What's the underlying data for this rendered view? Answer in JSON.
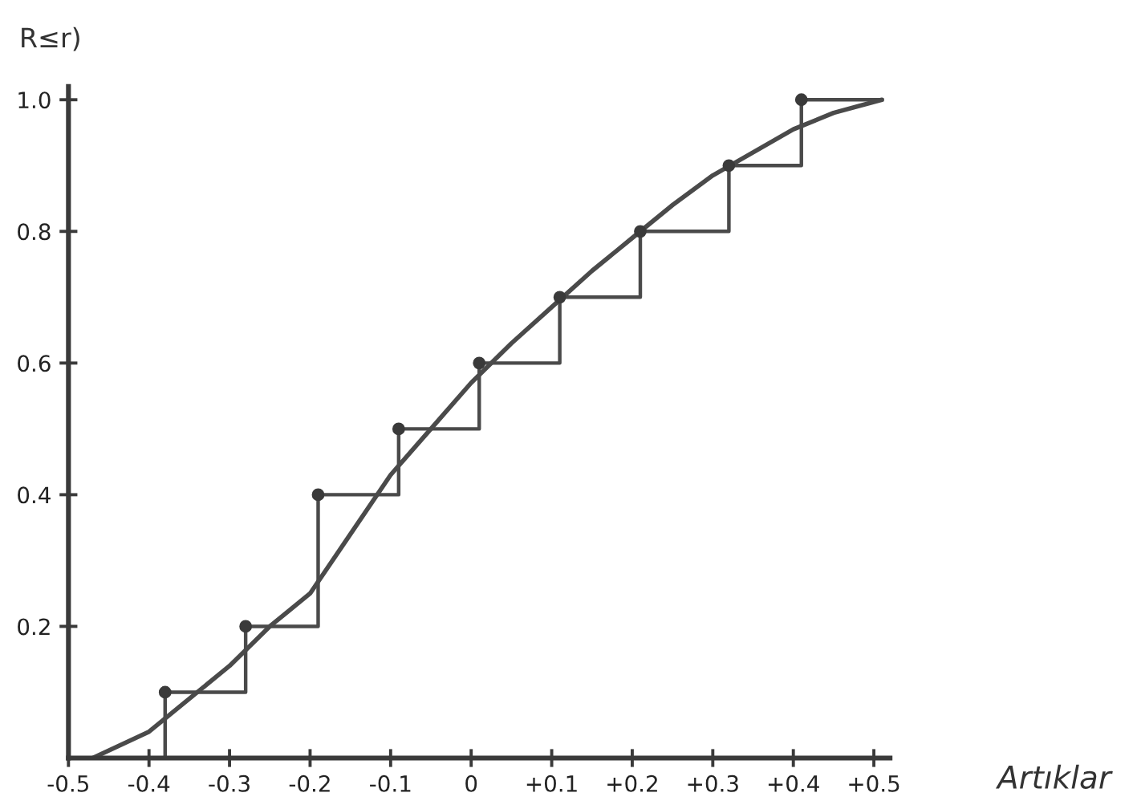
{
  "chart_data": {
    "type": "line",
    "xlabel": "Artıklar",
    "ylabel": "R≤r)",
    "xlim": [
      -0.5,
      0.52
    ],
    "ylim": [
      0,
      1.02
    ],
    "xticks": [
      -0.5,
      -0.4,
      -0.3,
      -0.2,
      -0.1,
      0,
      {
        "value": 0.1,
        "label": "+0.1"
      },
      {
        "value": 0.2,
        "label": "+0.2"
      },
      {
        "value": 0.3,
        "label": "+0.3"
      },
      {
        "value": 0.4,
        "label": "+0.4"
      },
      {
        "value": 0.5,
        "label": "+0.5"
      }
    ],
    "yticks": [
      0.2,
      0.4,
      0.6,
      0.8,
      {
        "value": 1.0,
        "label": "1.0"
      }
    ],
    "grid": false,
    "legend": false,
    "series": [
      {
        "type": "step",
        "color": "#4a4a4a",
        "x": [
          -0.38,
          -0.38,
          -0.28,
          -0.19,
          -0.09,
          0.01,
          0.11,
          0.21,
          0.32,
          0.41,
          0.51
        ],
        "values": [
          0,
          0.1,
          0.2,
          0.4,
          0.5,
          0.6,
          0.7,
          0.8,
          0.9,
          1.0,
          1.0
        ]
      },
      {
        "type": "scatter",
        "color": "#3a3a3a",
        "marker": "circle",
        "x": [
          -0.38,
          -0.28,
          -0.19,
          -0.09,
          0.01,
          0.11,
          0.21,
          0.32,
          0.41
        ],
        "values": [
          0.1,
          0.2,
          0.4,
          0.5,
          0.6,
          0.7,
          0.8,
          0.9,
          1.0
        ]
      },
      {
        "color": "#4a4a4a",
        "x": [
          -0.47,
          -0.4,
          -0.35,
          -0.3,
          -0.25,
          -0.2,
          -0.15,
          -0.1,
          -0.05,
          0,
          0.05,
          0.1,
          0.15,
          0.2,
          0.25,
          0.3,
          0.35,
          0.4,
          0.45,
          0.51
        ],
        "values": [
          0,
          0.04,
          0.09,
          0.14,
          0.2,
          0.25,
          0.34,
          0.43,
          0.5,
          0.57,
          0.63,
          0.685,
          0.74,
          0.79,
          0.84,
          0.885,
          0.92,
          0.955,
          0.98,
          1.0
        ]
      }
    ]
  }
}
